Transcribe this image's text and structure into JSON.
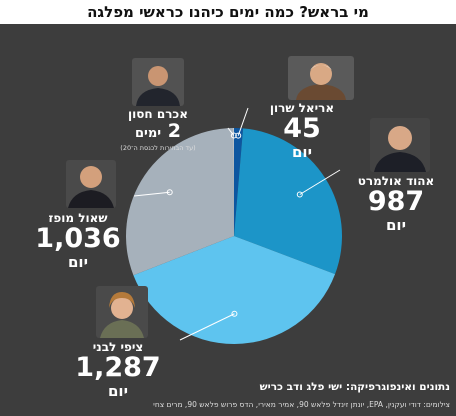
{
  "title": "מי בראש? כמה ימים כיהנו כראשי מפלגה",
  "chart_data": {
    "type": "pie",
    "unit": "יום",
    "slices": [
      {
        "name": "אריאל שרון",
        "value": 45,
        "value_label": "45",
        "unit": "יום",
        "color": "#0d56a0"
      },
      {
        "name": "אהוד אולמרט",
        "value": 987,
        "value_label": "987",
        "unit": "יום",
        "color": "#1c95c8"
      },
      {
        "name": "ציפי לבני",
        "value": 1287,
        "value_label": "1,287",
        "unit": "יום",
        "color": "#5ec4ef"
      },
      {
        "name": "שאול מופז",
        "value": 1036,
        "value_label": "1,036",
        "unit": "יום",
        "color": "#a6b1bb"
      },
      {
        "name": "אכרם חסון",
        "value": 2,
        "value_label": "2",
        "unit": "ימים",
        "color": "#ffffff",
        "note": "(עד הבחירות לכנסת ה־20)"
      }
    ]
  },
  "credits": {
    "main": "נתונים ואינפוגרפיקה: ישי פלג ודב כריש",
    "photos": "צילומים: דודי ועקנין, EPA, יונתן זינדל פלאש 90, אמיר מאירי, הדס פרוש פלאש 90, מרים צחי"
  },
  "colors": {
    "background": "#3d3d3d",
    "title_background": "#ffffff",
    "leader": "#ffffff"
  },
  "icons": [
    "portrait-ariel-sharon",
    "portrait-ehud-olmert",
    "portrait-tzipi-livni",
    "portrait-shaul-mofaz",
    "portrait-akram-hasson"
  ]
}
